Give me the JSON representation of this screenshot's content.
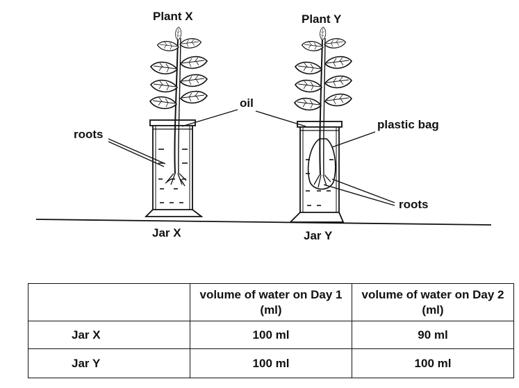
{
  "diagram": {
    "plant_x_label": "Plant X",
    "plant_y_label": "Plant Y",
    "jar_x_label": "Jar X",
    "jar_y_label": "Jar Y",
    "oil_label": "oil",
    "roots_left_label": "roots",
    "roots_right_label": "roots",
    "plastic_bag_label": "plastic bag"
  },
  "table": {
    "headers": [
      "",
      "volume of water on Day 1 (ml)",
      "volume of water on Day 2 (ml)"
    ],
    "rows": [
      {
        "jar": "Jar X",
        "day1": "100 ml",
        "day2": "90 ml"
      },
      {
        "jar": "Jar Y",
        "day1": "100 ml",
        "day2": "100 ml"
      }
    ]
  }
}
